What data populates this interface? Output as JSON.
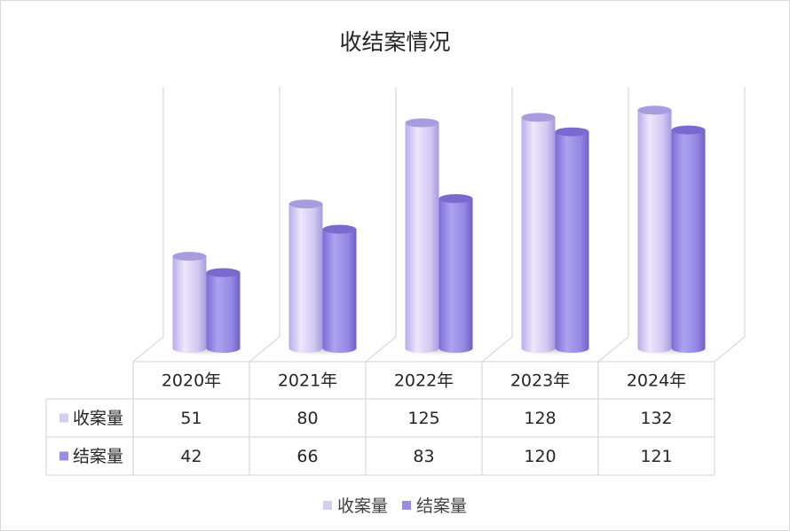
{
  "chart_data": {
    "type": "bar",
    "title": "收结案情况",
    "categories": [
      "2020年",
      "2021年",
      "2022年",
      "2023年",
      "2024年"
    ],
    "series": [
      {
        "name": "收案量",
        "values": [
          51,
          80,
          125,
          128,
          132
        ],
        "color": "#d6cdf3"
      },
      {
        "name": "结案量",
        "values": [
          42,
          66,
          83,
          120,
          121
        ],
        "color": "#9a8be6"
      }
    ],
    "ylim": [
      0,
      140
    ],
    "grid": false,
    "data_table": true,
    "legend_position": "bottom",
    "shape": "cylinder-3d"
  }
}
